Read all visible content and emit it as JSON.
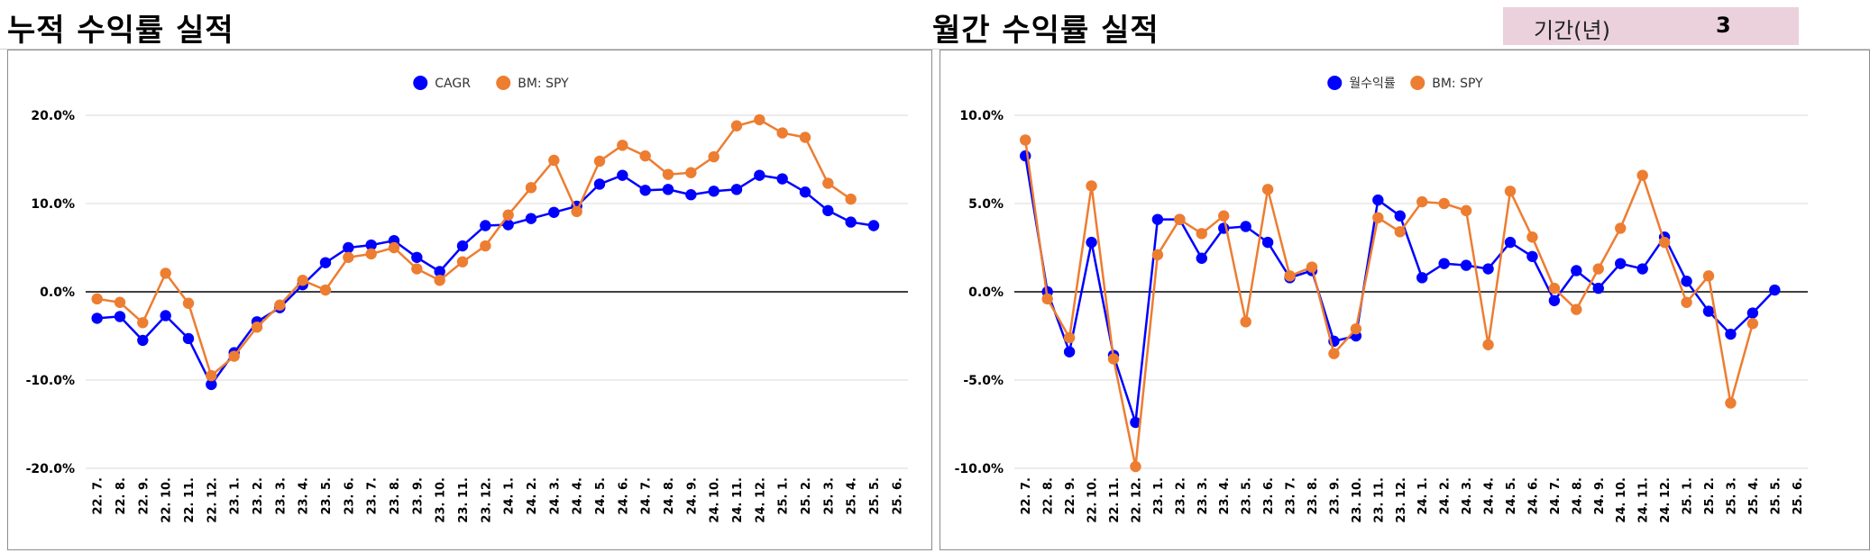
{
  "sheet": {
    "left_title": "누적 수익률 실적",
    "right_title": "월간 수익률 실적",
    "period_label": "기간(년)",
    "period_value": "3"
  },
  "colors": {
    "primary": "#0000ff",
    "benchmark": "#ed7d31",
    "zero_line": "#000000",
    "grid": "#d9d9d9",
    "period_bg": "#ead1dc"
  },
  "chart_data": [
    {
      "id": "cumulative",
      "type": "line",
      "title": "",
      "xlabel": "",
      "ylabel": "",
      "ylim": [
        -0.2,
        0.2
      ],
      "yticks": [
        0.2,
        0.1,
        0.0,
        -0.1,
        -0.2
      ],
      "ytick_labels": [
        "20.0%",
        "10.0%",
        "0.0%",
        "-10.0%",
        "-20.0%"
      ],
      "grid": true,
      "legend": "top-center",
      "categories": [
        "22. 7.",
        "22. 8.",
        "22. 9.",
        "22. 10.",
        "22. 11.",
        "22. 12.",
        "23. 1.",
        "23. 2.",
        "23. 3.",
        "23. 4.",
        "23. 5.",
        "23. 6.",
        "23. 7.",
        "23. 8.",
        "23. 9.",
        "23. 10.",
        "23. 11.",
        "23. 12.",
        "24. 1.",
        "24. 2.",
        "24. 3.",
        "24. 4.",
        "24. 5.",
        "24. 6.",
        "24. 7.",
        "24. 8.",
        "24. 9.",
        "24. 10.",
        "24. 11.",
        "24. 12.",
        "25. 1.",
        "25. 2.",
        "25. 3.",
        "25. 4.",
        "25. 5.",
        "25. 6."
      ],
      "series": [
        {
          "name": "CAGR",
          "color": "#0000ff",
          "values": [
            -0.03,
            -0.028,
            -0.055,
            -0.027,
            -0.053,
            -0.105,
            -0.069,
            -0.034,
            -0.018,
            0.008,
            0.033,
            0.05,
            0.053,
            0.058,
            0.039,
            0.023,
            0.052,
            0.075,
            0.076,
            0.083,
            0.09,
            0.097,
            0.122,
            0.132,
            0.115,
            0.116,
            0.11,
            0.114,
            0.116,
            0.132,
            0.128,
            0.113,
            0.092,
            0.079,
            0.075,
            null
          ]
        },
        {
          "name": "BM: SPY",
          "color": "#ed7d31",
          "values": [
            -0.008,
            -0.012,
            -0.035,
            0.021,
            -0.013,
            -0.095,
            -0.073,
            -0.04,
            -0.015,
            0.013,
            0.002,
            0.039,
            0.043,
            0.05,
            0.026,
            0.013,
            0.034,
            0.052,
            0.087,
            0.118,
            0.149,
            0.091,
            0.148,
            0.166,
            0.154,
            0.133,
            0.135,
            0.153,
            0.188,
            0.195,
            0.18,
            0.175,
            0.123,
            0.105,
            null,
            null
          ]
        }
      ]
    },
    {
      "id": "monthly",
      "type": "line",
      "title": "",
      "xlabel": "",
      "ylabel": "",
      "ylim": [
        -0.1,
        0.1
      ],
      "yticks": [
        0.1,
        0.05,
        0.0,
        -0.05,
        -0.1
      ],
      "ytick_labels": [
        "10.0%",
        "5.0%",
        "0.0%",
        "-5.0%",
        "-10.0%"
      ],
      "grid": true,
      "legend": "top-center",
      "categories": [
        "22. 7.",
        "22. 8.",
        "22. 9.",
        "22. 10.",
        "22. 11.",
        "22. 12.",
        "23. 1.",
        "23. 2.",
        "23. 3.",
        "23. 4.",
        "23. 5.",
        "23. 6.",
        "23. 7.",
        "23. 8.",
        "23. 9.",
        "23. 10.",
        "23. 11.",
        "23. 12.",
        "24. 1.",
        "24. 2.",
        "24. 3.",
        "24. 4.",
        "24. 5.",
        "24. 6.",
        "24. 7.",
        "24. 8.",
        "24. 9.",
        "24. 10.",
        "24. 11.",
        "24. 12.",
        "25. 1.",
        "25. 2.",
        "25. 3.",
        "25. 4.",
        "25. 5.",
        "25. 6."
      ],
      "series": [
        {
          "name": "월수익률",
          "color": "#0000ff",
          "values": [
            0.077,
            0.0,
            -0.034,
            0.028,
            -0.036,
            -0.074,
            0.041,
            0.041,
            0.019,
            0.036,
            0.037,
            0.028,
            0.008,
            0.012,
            -0.028,
            -0.025,
            0.052,
            0.043,
            0.008,
            0.016,
            0.015,
            0.013,
            0.028,
            0.02,
            -0.005,
            0.012,
            0.002,
            0.016,
            0.013,
            0.031,
            0.006,
            -0.011,
            -0.024,
            -0.012,
            0.001,
            null
          ]
        },
        {
          "name": "BM: SPY",
          "color": "#ed7d31",
          "values": [
            0.086,
            -0.004,
            -0.026,
            0.06,
            -0.038,
            -0.099,
            0.021,
            0.041,
            0.033,
            0.043,
            -0.017,
            0.058,
            0.009,
            0.014,
            -0.035,
            -0.021,
            0.042,
            0.034,
            0.051,
            0.05,
            0.046,
            -0.03,
            0.057,
            0.031,
            0.002,
            -0.01,
            0.013,
            0.036,
            0.066,
            0.028,
            -0.006,
            0.009,
            -0.063,
            -0.018,
            null,
            null
          ]
        }
      ]
    }
  ]
}
